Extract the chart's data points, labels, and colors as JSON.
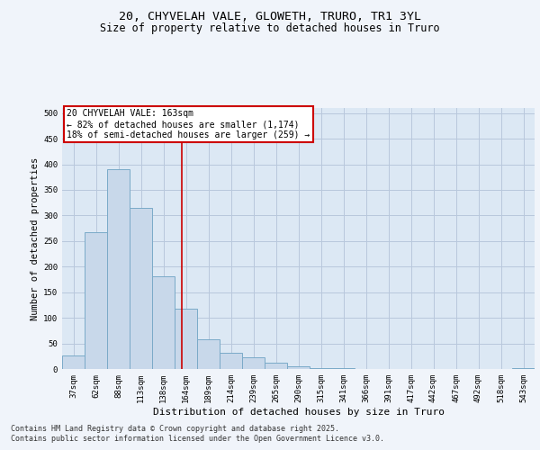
{
  "title1": "20, CHYVELAH VALE, GLOWETH, TRURO, TR1 3YL",
  "title2": "Size of property relative to detached houses in Truro",
  "xlabel": "Distribution of detached houses by size in Truro",
  "ylabel": "Number of detached properties",
  "categories": [
    "37sqm",
    "62sqm",
    "88sqm",
    "113sqm",
    "138sqm",
    "164sqm",
    "189sqm",
    "214sqm",
    "239sqm",
    "265sqm",
    "290sqm",
    "315sqm",
    "341sqm",
    "366sqm",
    "391sqm",
    "417sqm",
    "442sqm",
    "467sqm",
    "492sqm",
    "518sqm",
    "543sqm"
  ],
  "values": [
    27,
    267,
    390,
    315,
    182,
    118,
    58,
    32,
    22,
    13,
    6,
    2,
    1,
    0,
    0,
    0,
    0,
    0,
    0,
    0,
    2
  ],
  "bar_color": "#c8d8ea",
  "bar_edge_color": "#7aaac8",
  "vline_x": 4.82,
  "vline_color": "#cc0000",
  "annotation_text": "20 CHYVELAH VALE: 163sqm\n← 82% of detached houses are smaller (1,174)\n18% of semi-detached houses are larger (259) →",
  "annotation_box_color": "#cc0000",
  "ylim": [
    0,
    510
  ],
  "yticks": [
    0,
    50,
    100,
    150,
    200,
    250,
    300,
    350,
    400,
    450,
    500
  ],
  "grid_color": "#b8c8dc",
  "bg_color": "#dce8f4",
  "fig_bg_color": "#f0f4fa",
  "footer1": "Contains HM Land Registry data © Crown copyright and database right 2025.",
  "footer2": "Contains public sector information licensed under the Open Government Licence v3.0.",
  "title_fontsize": 9.5,
  "subtitle_fontsize": 8.5,
  "tick_fontsize": 6.5,
  "ylabel_fontsize": 7.5,
  "xlabel_fontsize": 8,
  "annotation_fontsize": 7,
  "footer_fontsize": 6
}
